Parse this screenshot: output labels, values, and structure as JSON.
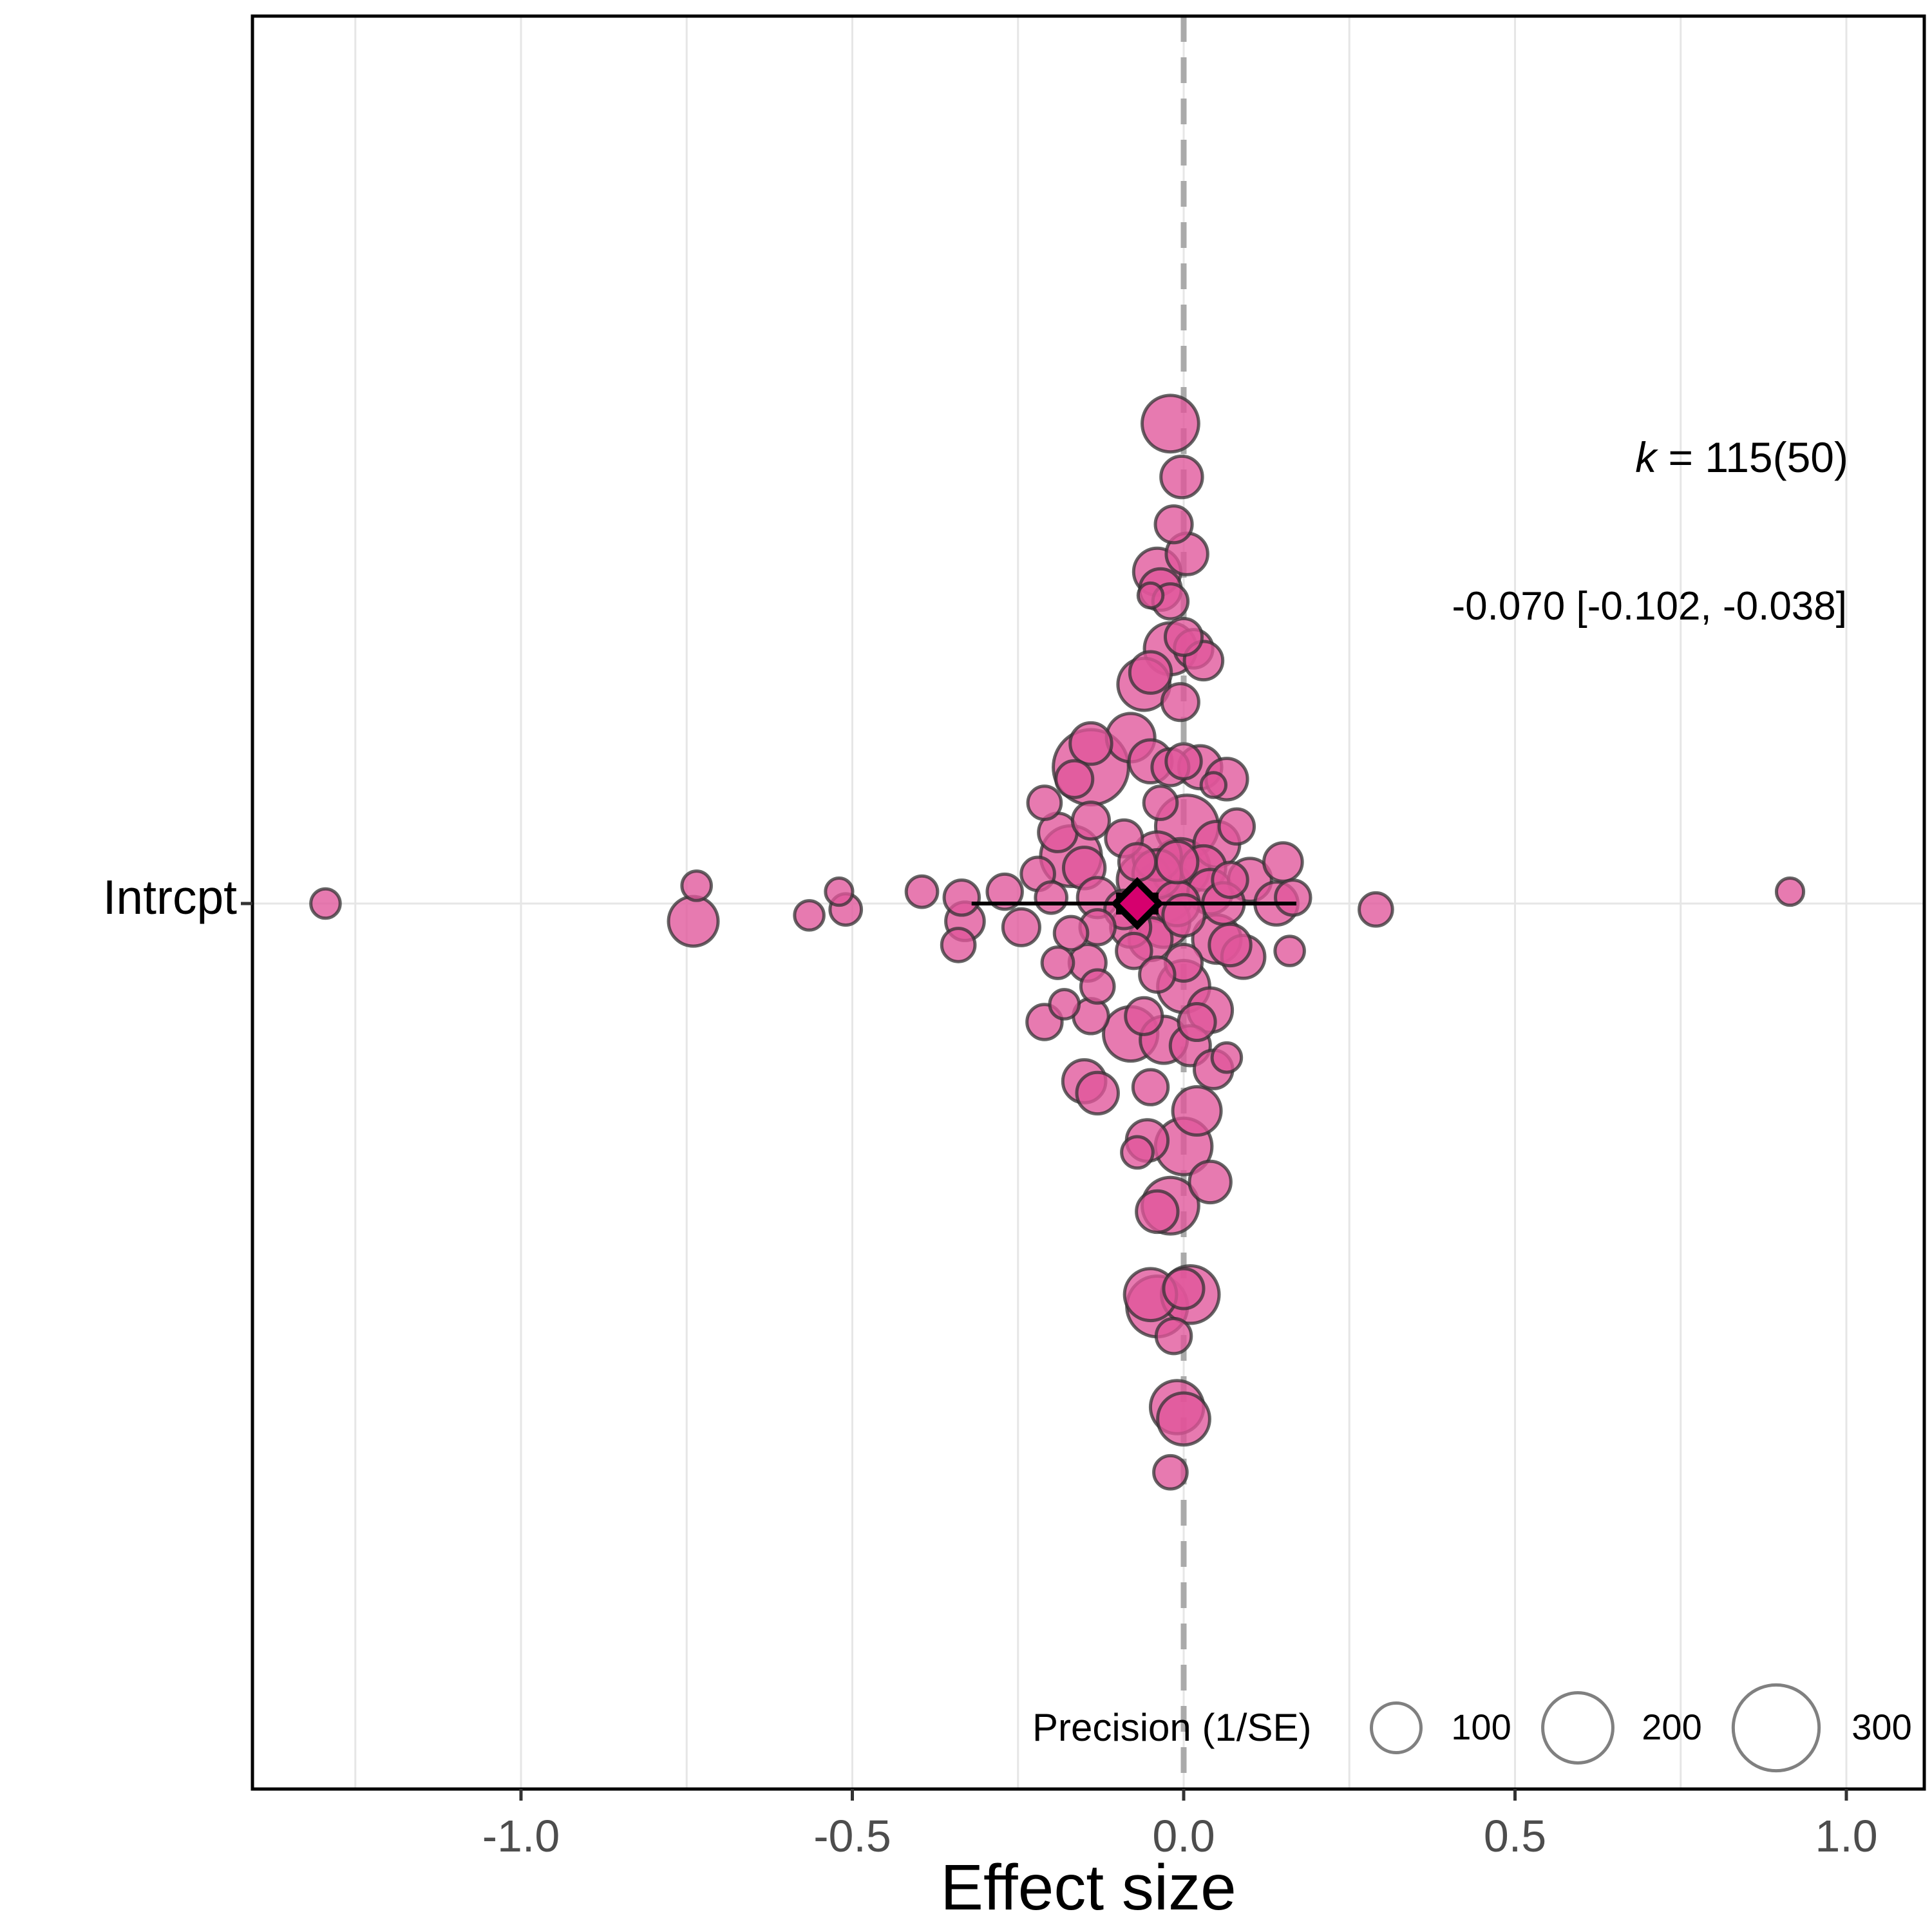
{
  "chart_data": {
    "type": "scatter",
    "title": "",
    "xlabel": "Effect size",
    "ylabel": "",
    "xlim": [
      -1.41,
      1.12
    ],
    "xticks": [
      -1.0,
      -0.5,
      0.0,
      0.5,
      1.0
    ],
    "xtick_labels": [
      "-1.0",
      "-0.5",
      "0.0",
      "0.5",
      "1.0"
    ],
    "ytick_labels": [
      "Intrcpt"
    ],
    "grid": true,
    "reference_line_x": 0.0,
    "colors": {
      "point": "#e0559a",
      "point_stroke": "#333333",
      "summary": "#d6006e",
      "refline": "#aaaaaa",
      "grid": "#e6e6e6"
    },
    "annotation_k": {
      "italic": "k",
      "rest": " = 115(50)"
    },
    "annotation_estimate": "-0.070 [-0.102, -0.038]",
    "summary": {
      "estimate": -0.07,
      "ci": [
        -0.102,
        -0.038
      ],
      "pi": [
        -0.32,
        0.17
      ]
    },
    "legend": {
      "title": "Precision (1/SE)",
      "position": "bottom-right",
      "entries": [
        {
          "label": "100",
          "value": 100
        },
        {
          "label": "200",
          "value": 200
        },
        {
          "label": "300",
          "value": 300
        }
      ]
    },
    "points": [
      {
        "x": -0.02,
        "jitter": 0.81,
        "precision": 130
      },
      {
        "x": -0.003,
        "jitter": 0.72,
        "precision": 70
      },
      {
        "x": -0.015,
        "jitter": 0.64,
        "precision": 55
      },
      {
        "x": 0.005,
        "jitter": 0.59,
        "precision": 70
      },
      {
        "x": -0.04,
        "jitter": 0.56,
        "precision": 90
      },
      {
        "x": -0.035,
        "jitter": 0.53,
        "precision": 70
      },
      {
        "x": -0.02,
        "jitter": 0.51,
        "precision": 50
      },
      {
        "x": -0.05,
        "jitter": 0.52,
        "precision": 25
      },
      {
        "x": -0.02,
        "jitter": 0.43,
        "precision": 110
      },
      {
        "x": 0.0,
        "jitter": 0.45,
        "precision": 55
      },
      {
        "x": 0.015,
        "jitter": 0.43,
        "precision": 60
      },
      {
        "x": 0.03,
        "jitter": 0.41,
        "precision": 60
      },
      {
        "x": -0.05,
        "jitter": 0.39,
        "precision": 70
      },
      {
        "x": -0.06,
        "jitter": 0.37,
        "precision": 110
      },
      {
        "x": -0.005,
        "jitter": 0.34,
        "precision": 55
      },
      {
        "x": -0.08,
        "jitter": 0.28,
        "precision": 95
      },
      {
        "x": -0.14,
        "jitter": 0.27,
        "precision": 70
      },
      {
        "x": -0.14,
        "jitter": 0.23,
        "precision": 230
      },
      {
        "x": -0.05,
        "jitter": 0.24,
        "precision": 75
      },
      {
        "x": -0.02,
        "jitter": 0.23,
        "precision": 55
      },
      {
        "x": 0.0,
        "jitter": 0.24,
        "precision": 50
      },
      {
        "x": 0.025,
        "jitter": 0.23,
        "precision": 75
      },
      {
        "x": 0.065,
        "jitter": 0.21,
        "precision": 70
      },
      {
        "x": 0.045,
        "jitter": 0.2,
        "precision": 25
      },
      {
        "x": -0.165,
        "jitter": 0.21,
        "precision": 55
      },
      {
        "x": -0.21,
        "jitter": 0.17,
        "precision": 45
      },
      {
        "x": -0.035,
        "jitter": 0.17,
        "precision": 45
      },
      {
        "x": 0.005,
        "jitter": 0.13,
        "precision": 160
      },
      {
        "x": -0.14,
        "jitter": 0.14,
        "precision": 55
      },
      {
        "x": -0.19,
        "jitter": 0.12,
        "precision": 60
      },
      {
        "x": -0.09,
        "jitter": 0.11,
        "precision": 55
      },
      {
        "x": -0.04,
        "jitter": 0.08,
        "precision": 95
      },
      {
        "x": -0.01,
        "jitter": 0.07,
        "precision": 70
      },
      {
        "x": 0.05,
        "jitter": 0.1,
        "precision": 85
      },
      {
        "x": 0.08,
        "jitter": 0.13,
        "precision": 50
      },
      {
        "x": -0.17,
        "jitter": 0.08,
        "precision": 150
      },
      {
        "x": -0.15,
        "jitter": 0.06,
        "precision": 70
      },
      {
        "x": -0.07,
        "jitter": 0.07,
        "precision": 55
      },
      {
        "x": -0.04,
        "jitter": 0.05,
        "precision": 95
      },
      {
        "x": -0.005,
        "jitter": 0.06,
        "precision": 140
      },
      {
        "x": 0.03,
        "jitter": 0.06,
        "precision": 80
      },
      {
        "x": 0.07,
        "jitter": 0.04,
        "precision": 50
      },
      {
        "x": 0.1,
        "jitter": 0.04,
        "precision": 75
      },
      {
        "x": 0.15,
        "jitter": 0.07,
        "precision": 60
      },
      {
        "x": -0.22,
        "jitter": 0.05,
        "precision": 45
      },
      {
        "x": -0.06,
        "jitter": 0.04,
        "precision": 115
      },
      {
        "x": -0.03,
        "jitter": 0.02,
        "precision": 150
      },
      {
        "x": 0.04,
        "jitter": 0.02,
        "precision": 80
      },
      {
        "x": -0.27,
        "jitter": 0.02,
        "precision": 50
      },
      {
        "x": -0.2,
        "jitter": 0.01,
        "precision": 40
      },
      {
        "x": -0.13,
        "jitter": 0.01,
        "precision": 65
      },
      {
        "x": -0.09,
        "jitter": -0.01,
        "precision": 60
      },
      {
        "x": -0.01,
        "jitter": 0.0,
        "precision": 80
      },
      {
        "x": 0.06,
        "jitter": 0.0,
        "precision": 70
      },
      {
        "x": 0.14,
        "jitter": 0.0,
        "precision": 75
      },
      {
        "x": 0.165,
        "jitter": 0.01,
        "precision": 50
      },
      {
        "x": -0.335,
        "jitter": 0.01,
        "precision": 50
      },
      {
        "x": -0.395,
        "jitter": 0.02,
        "precision": 40
      },
      {
        "x": -0.52,
        "jitter": 0.02,
        "precision": 30
      },
      {
        "x": -0.735,
        "jitter": 0.03,
        "precision": 35
      },
      {
        "x": -1.295,
        "jitter": 0.0,
        "precision": 35
      },
      {
        "x": 0.915,
        "jitter": 0.02,
        "precision": 30
      },
      {
        "x": 0.29,
        "jitter": -0.01,
        "precision": 45
      },
      {
        "x": 0.16,
        "jitter": -0.08,
        "precision": 35
      },
      {
        "x": -0.74,
        "jitter": -0.03,
        "precision": 100
      },
      {
        "x": -0.565,
        "jitter": -0.02,
        "precision": 35
      },
      {
        "x": -0.51,
        "jitter": -0.01,
        "precision": 40
      },
      {
        "x": -0.33,
        "jitter": -0.03,
        "precision": 60
      },
      {
        "x": -0.34,
        "jitter": -0.07,
        "precision": 45
      },
      {
        "x": -0.245,
        "jitter": -0.04,
        "precision": 55
      },
      {
        "x": -0.17,
        "jitter": -0.05,
        "precision": 45
      },
      {
        "x": -0.13,
        "jitter": -0.04,
        "precision": 50
      },
      {
        "x": -0.08,
        "jitter": -0.04,
        "precision": 65
      },
      {
        "x": -0.03,
        "jitter": -0.03,
        "precision": 110
      },
      {
        "x": 0.0,
        "jitter": -0.02,
        "precision": 70
      },
      {
        "x": -0.075,
        "jitter": -0.08,
        "precision": 50
      },
      {
        "x": -0.05,
        "jitter": -0.06,
        "precision": 75
      },
      {
        "x": 0.05,
        "jitter": -0.06,
        "precision": 95
      },
      {
        "x": 0.07,
        "jitter": -0.07,
        "precision": 70
      },
      {
        "x": 0.09,
        "jitter": -0.09,
        "precision": 75
      },
      {
        "x": 0.0,
        "jitter": -0.1,
        "precision": 55
      },
      {
        "x": -0.19,
        "jitter": -0.1,
        "precision": 40
      },
      {
        "x": -0.145,
        "jitter": -0.1,
        "precision": 55
      },
      {
        "x": -0.04,
        "jitter": -0.12,
        "precision": 50
      },
      {
        "x": 0.0,
        "jitter": -0.14,
        "precision": 110
      },
      {
        "x": -0.13,
        "jitter": -0.14,
        "precision": 45
      },
      {
        "x": -0.21,
        "jitter": -0.2,
        "precision": 50
      },
      {
        "x": -0.18,
        "jitter": -0.17,
        "precision": 35
      },
      {
        "x": -0.14,
        "jitter": -0.19,
        "precision": 50
      },
      {
        "x": -0.06,
        "jitter": -0.19,
        "precision": 55
      },
      {
        "x": 0.04,
        "jitter": -0.18,
        "precision": 80
      },
      {
        "x": 0.02,
        "jitter": -0.2,
        "precision": 55
      },
      {
        "x": -0.08,
        "jitter": -0.22,
        "precision": 120
      },
      {
        "x": -0.03,
        "jitter": -0.23,
        "precision": 90
      },
      {
        "x": 0.01,
        "jitter": -0.24,
        "precision": 65
      },
      {
        "x": 0.065,
        "jitter": -0.26,
        "precision": 35
      },
      {
        "x": 0.045,
        "jitter": -0.28,
        "precision": 60
      },
      {
        "x": -0.15,
        "jitter": -0.3,
        "precision": 75
      },
      {
        "x": -0.13,
        "jitter": -0.32,
        "precision": 70
      },
      {
        "x": -0.05,
        "jitter": -0.31,
        "precision": 50
      },
      {
        "x": 0.02,
        "jitter": -0.35,
        "precision": 95
      },
      {
        "x": -0.055,
        "jitter": -0.4,
        "precision": 70
      },
      {
        "x": -0.07,
        "jitter": -0.42,
        "precision": 40
      },
      {
        "x": 0.0,
        "jitter": -0.41,
        "precision": 130
      },
      {
        "x": 0.04,
        "jitter": -0.47,
        "precision": 70
      },
      {
        "x": -0.02,
        "jitter": -0.51,
        "precision": 130
      },
      {
        "x": -0.04,
        "jitter": -0.52,
        "precision": 70
      },
      {
        "x": -0.05,
        "jitter": -0.66,
        "precision": 110
      },
      {
        "x": -0.04,
        "jitter": -0.68,
        "precision": 150
      },
      {
        "x": 0.0,
        "jitter": -0.65,
        "precision": 65
      },
      {
        "x": 0.01,
        "jitter": -0.66,
        "precision": 135
      },
      {
        "x": -0.015,
        "jitter": -0.73,
        "precision": 50
      },
      {
        "x": -0.01,
        "jitter": -0.85,
        "precision": 115
      },
      {
        "x": 0.0,
        "jitter": -0.87,
        "precision": 110
      },
      {
        "x": -0.02,
        "jitter": -0.96,
        "precision": 45
      }
    ]
  }
}
